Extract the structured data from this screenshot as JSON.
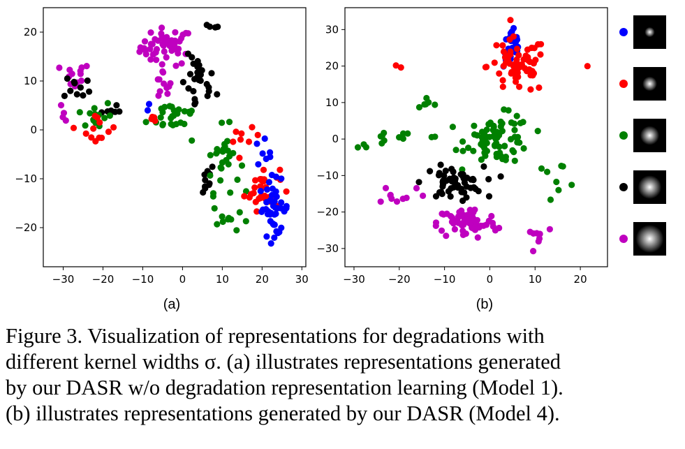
{
  "colors": {
    "blue": "#0000ff",
    "red": "#ff0000",
    "green": "#008000",
    "black": "#000000",
    "magenta": "#bf00bf"
  },
  "chart_data": [
    {
      "type": "scatter",
      "panel_label": "(a)",
      "xlim": [
        -35,
        31
      ],
      "ylim": [
        -28,
        25
      ],
      "xticks": [
        -30,
        -20,
        -10,
        0,
        10,
        20,
        30
      ],
      "yticks": [
        -20,
        -10,
        0,
        10,
        20
      ],
      "grid": false,
      "clusters": [
        {
          "color": "magenta",
          "regions": [
            [
              -4,
              17,
              6,
              3.5,
              50
            ],
            [
              -27,
              11,
              3.5,
              2.5,
              12
            ],
            [
              -5,
              9,
              2,
              3,
              10
            ],
            [
              -30,
              3,
              1.5,
              1.5,
              4
            ]
          ]
        },
        {
          "color": "black",
          "regions": [
            [
              4,
              9,
              4,
              5.5,
              26
            ],
            [
              -26,
              9,
              3.5,
              2.5,
              10
            ],
            [
              -19,
              4,
              3,
              2,
              8
            ],
            [
              8,
              21,
              1.5,
              0.8,
              4
            ],
            [
              5,
              -10,
              3,
              3,
              10
            ]
          ]
        },
        {
          "color": "green",
          "regions": [
            [
              -2,
              3,
              6,
              3,
              26
            ],
            [
              -22,
              3,
              4,
              3,
              14
            ],
            [
              10,
              -6,
              4,
              6,
              28
            ],
            [
              12,
              -18,
              4,
              3,
              10
            ]
          ]
        },
        {
          "color": "red",
          "regions": [
            [
              20,
              -12,
              4,
              4,
              32
            ],
            [
              -21,
              0,
              4,
              3,
              12
            ],
            [
              16,
              -2,
              3,
              2,
              8
            ],
            [
              -8,
              2,
              2,
              1.5,
              4
            ]
          ]
        },
        {
          "color": "blue",
          "regions": [
            [
              23,
              -16,
              3.5,
              5,
              42
            ],
            [
              20,
              -5,
              2,
              3,
              8
            ],
            [
              -8,
              5,
              1,
              1,
              2
            ]
          ]
        }
      ]
    },
    {
      "type": "scatter",
      "panel_label": "(b)",
      "xlim": [
        -32,
        26
      ],
      "ylim": [
        -35,
        36
      ],
      "xticks": [
        -30,
        -20,
        -10,
        0,
        10,
        20
      ],
      "yticks": [
        -30,
        -20,
        -10,
        0,
        10,
        20,
        30
      ],
      "grid": false,
      "clusters": [
        {
          "color": "blue",
          "regions": [
            [
              5,
              25,
              1.8,
              5,
              30
            ]
          ]
        },
        {
          "color": "red",
          "regions": [
            [
              6,
              20,
              6,
              7,
              65
            ],
            [
              -20,
              19,
              3,
              1,
              2
            ],
            [
              22,
              19,
              1,
              1,
              1
            ]
          ]
        },
        {
          "color": "green",
          "regions": [
            [
              2,
              0,
              6.5,
              6,
              78
            ],
            [
              -20,
              0,
              10,
              2,
              14
            ],
            [
              -15,
              10,
              4,
              2,
              6
            ],
            [
              15,
              -10,
              5,
              3,
              8
            ]
          ]
        },
        {
          "color": "black",
          "regions": [
            [
              -8,
              -12,
              6,
              4,
              55
            ]
          ]
        },
        {
          "color": "magenta",
          "regions": [
            [
              -5,
              -23,
              6,
              4,
              70
            ],
            [
              -20,
              -15,
              6,
              3,
              10
            ],
            [
              10,
              -26,
              4,
              3,
              8
            ]
          ]
        }
      ]
    }
  ],
  "legend": {
    "entries": [
      {
        "color": "blue",
        "kernel_level": 1
      },
      {
        "color": "red",
        "kernel_level": 2
      },
      {
        "color": "green",
        "kernel_level": 3
      },
      {
        "color": "black",
        "kernel_level": 4
      },
      {
        "color": "magenta",
        "kernel_level": 5
      }
    ]
  },
  "caption": {
    "line1": "Figure 3. Visualization of representations for degradations with",
    "line2": "different kernel widths σ. (a) illustrates representations generated",
    "line3": "by our DASR w/o degradation representation learning (Model 1).",
    "line4": "(b) illustrates representations generated by our DASR (Model 4)."
  }
}
